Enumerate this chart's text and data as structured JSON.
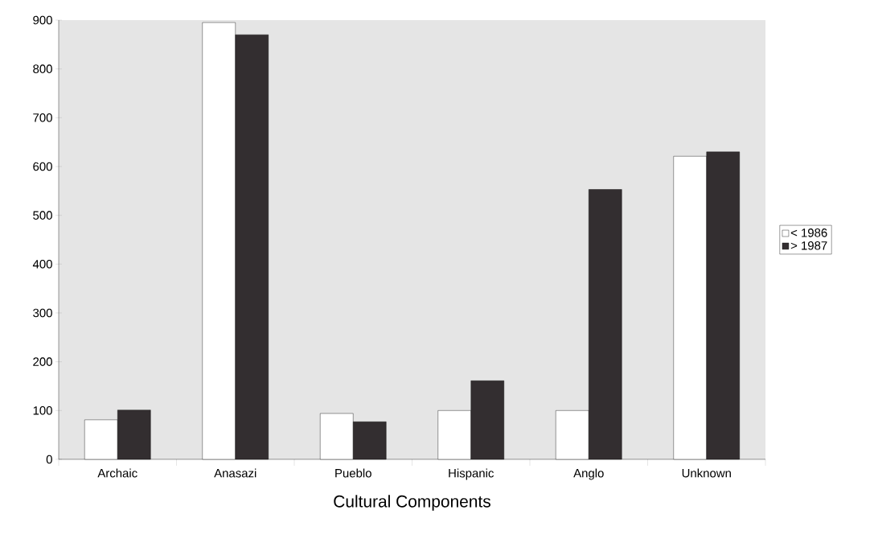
{
  "chart_data": {
    "type": "bar",
    "xlabel": "Cultural Components",
    "categories": [
      "Archaic",
      "Anasazi",
      "Pueblo",
      "Hispanic",
      "Anglo",
      "Unknown"
    ],
    "series": [
      {
        "name": "< 1986",
        "color": "#ffffff",
        "values": [
          81,
          895,
          94,
          100,
          100,
          621
        ]
      },
      {
        "name": "> 1987",
        "color": "#332e30",
        "values": [
          101,
          870,
          77,
          161,
          553,
          630
        ]
      }
    ],
    "ylim": [
      0,
      900
    ],
    "yticks": [
      0,
      100,
      200,
      300,
      400,
      500,
      600,
      700,
      800,
      900
    ],
    "legend": "right"
  }
}
